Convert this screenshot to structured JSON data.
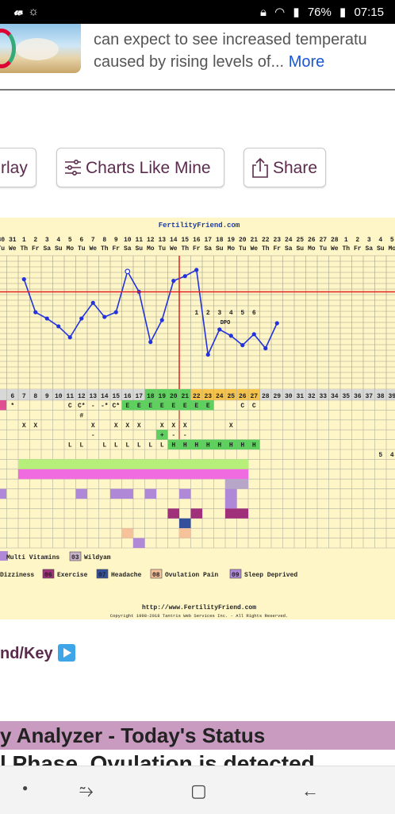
{
  "status_bar": {
    "time": "07:15",
    "battery": "76%"
  },
  "snippet": {
    "line1": "can expect to see increased temperatu",
    "line2": "caused by rising levels of...",
    "more": "More"
  },
  "buttons": {
    "overlay_label": "rlay",
    "charts_like_mine_label": "Charts Like Mine",
    "share_label": "Share"
  },
  "chart": {
    "site_title": "FertilityFriend.com",
    "footer_url": "http://www.FertilityFriend.com",
    "copyright": "Copyright 1998-2018 Tantris Web Services Inc. - All Rights Reserved.",
    "dpo_label": "DPO",
    "dpo_numbers": [
      "1",
      "2",
      "3",
      "4",
      "5",
      "6"
    ],
    "dates": [
      "30",
      "31",
      "1",
      "2",
      "3",
      "4",
      "5",
      "6",
      "7",
      "8",
      "9",
      "10",
      "11",
      "12",
      "13",
      "14",
      "15",
      "16",
      "17",
      "18",
      "19",
      "20",
      "21",
      "22",
      "23",
      "24",
      "25",
      "26",
      "27",
      "28",
      "1",
      "2",
      "3",
      "4",
      "5"
    ],
    "weekdays": [
      "Tu",
      "We",
      "Th",
      "Fr",
      "Sa",
      "Su",
      "Mo",
      "Tu",
      "We",
      "Th",
      "Fr",
      "Sa",
      "Su",
      "Mo",
      "Tu",
      "We",
      "Th",
      "Fr",
      "Sa",
      "Su",
      "Mo",
      "Tu",
      "We",
      "Th",
      "Fr",
      "Sa",
      "Su",
      "Mo",
      "Tu",
      "We",
      "Th",
      "Fr",
      "Sa",
      "Su",
      "Mo"
    ],
    "cycle_days": [
      "6",
      "7",
      "8",
      "9",
      "10",
      "11",
      "12",
      "13",
      "14",
      "15",
      "16",
      "17",
      "18",
      "19",
      "20",
      "21",
      "22",
      "23",
      "24",
      "25",
      "26",
      "27",
      "28",
      "29",
      "30",
      "31",
      "32",
      "33",
      "34",
      "35",
      "36",
      "37",
      "38",
      "39"
    ],
    "row_cm": [
      "*",
      "",
      "",
      "",
      "",
      "C",
      "C*",
      "-",
      "-*",
      "C*",
      "E",
      "E",
      "E",
      "E",
      "E",
      "E",
      "E",
      "E",
      "",
      "",
      "C",
      "C"
    ],
    "row_hash": "#",
    "row_x": [
      "X",
      "X",
      "",
      "",
      "",
      "",
      "X",
      "",
      "X",
      "X",
      "X",
      "",
      "X",
      "X",
      "X",
      "",
      "",
      "",
      "X"
    ],
    "row_minus": [
      "-",
      "",
      "",
      "",
      "",
      "",
      "+",
      "-",
      "-"
    ],
    "row_lh": [
      "L",
      "L",
      "",
      "L",
      "L",
      "L",
      "L",
      "L",
      "L",
      "H",
      "H",
      "H",
      "H",
      "H",
      "H",
      "H",
      "H"
    ],
    "right_numbers": [
      "5",
      "4"
    ],
    "legend_row1": [
      {
        "num": "03",
        "label": "Wildyam"
      }
    ],
    "legend_row1_prefix": "Multi Vitamins",
    "legend_row2": [
      {
        "num": "06",
        "label": "Exercise",
        "color": "#a0307a"
      },
      {
        "num": "07",
        "label": "Headache",
        "color": "#34509a"
      },
      {
        "num": "08",
        "label": "Ovulation Pain",
        "color": "#f6c29a"
      },
      {
        "num": "09",
        "label": "Sleep Deprived",
        "color": "#b088d8"
      }
    ],
    "legend_row2_prefix": "Dizziness",
    "temps": [
      null,
      null,
      33.0,
      30.9,
      30.5,
      30.0,
      29.3,
      30.5,
      31.5,
      30.6,
      30.9,
      33.5,
      32.2,
      29.0,
      30.4,
      32.9,
      33.2,
      33.6,
      28.2,
      29.8,
      29.4,
      28.8,
      29.5,
      28.6,
      30.2
    ],
    "temp_open_index": 11,
    "coverline": 32.2
  },
  "links_key": "nd/Key",
  "analyzer_title": "y Analyzer - Today's Status",
  "phase_text": "l Phase. Ovulation is detected"
}
